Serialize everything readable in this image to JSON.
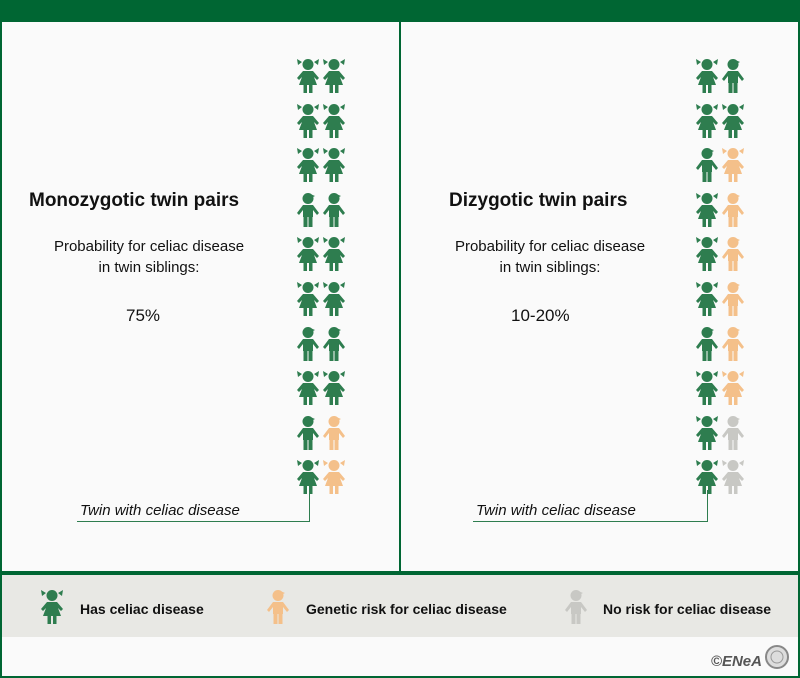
{
  "colors": {
    "affected": "#2e7d4f",
    "genetic_risk": "#f4c08a",
    "no_risk": "#c8c8c4",
    "frame": "#006633"
  },
  "left": {
    "title": "Monozygotic twin pairs",
    "prob_line1": "Probability for celiac disease",
    "prob_line2": "in twin siblings:",
    "value": "75%",
    "twin_label": "Twin with celiac disease",
    "pairs": [
      [
        "girl-affected",
        "girl-affected"
      ],
      [
        "girl-affected",
        "girl-affected"
      ],
      [
        "girl-affected",
        "girl-affected"
      ],
      [
        "boy-affected",
        "boy-affected"
      ],
      [
        "girl-affected",
        "girl-affected"
      ],
      [
        "girl-affected",
        "girl-affected"
      ],
      [
        "boy-affected",
        "boy-affected"
      ],
      [
        "girl-affected",
        "girl-affected"
      ],
      [
        "boy-affected",
        "boy-genetic_risk"
      ],
      [
        "girl-affected",
        "girl-genetic_risk"
      ]
    ]
  },
  "right": {
    "title": "Dizygotic twin pairs",
    "prob_line1": "Probability for celiac disease",
    "prob_line2": "in twin siblings:",
    "value": "10-20%",
    "twin_label": "Twin with celiac disease",
    "pairs": [
      [
        "girl-affected",
        "boy-affected"
      ],
      [
        "girl-affected",
        "girl-affected"
      ],
      [
        "boy-affected",
        "girl-genetic_risk"
      ],
      [
        "girl-affected",
        "boy-genetic_risk"
      ],
      [
        "girl-affected",
        "boy-genetic_risk"
      ],
      [
        "girl-affected",
        "boy-genetic_risk"
      ],
      [
        "boy-affected",
        "boy-genetic_risk"
      ],
      [
        "girl-affected",
        "girl-genetic_risk"
      ],
      [
        "girl-affected",
        "boy-no_risk"
      ],
      [
        "girl-affected",
        "girl-no_risk"
      ]
    ]
  },
  "legend": [
    {
      "label": "Has celiac disease",
      "icon": "girl-affected"
    },
    {
      "label": "Genetic risk for celiac disease",
      "icon": "boy-genetic_risk"
    },
    {
      "label": "No risk for celiac disease",
      "icon": "boy-no_risk"
    }
  ],
  "footer": {
    "copyright": "©ENeA"
  }
}
